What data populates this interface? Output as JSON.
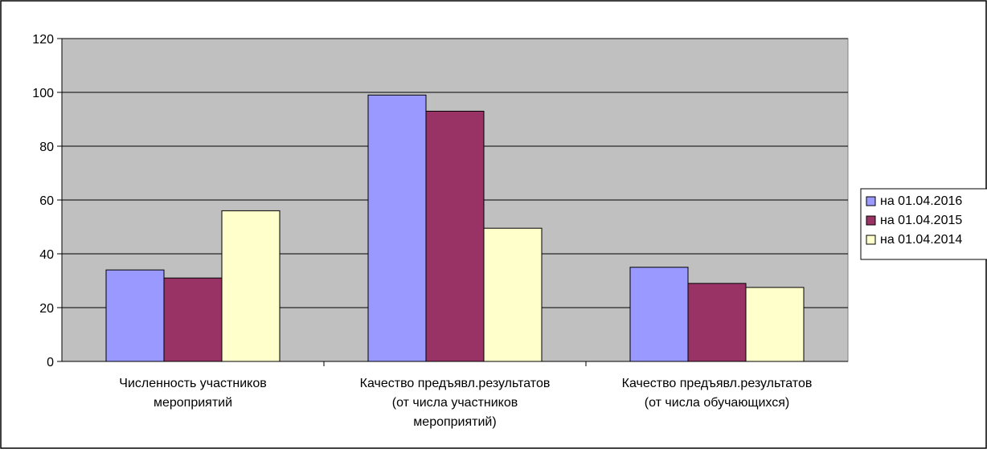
{
  "chart_data": {
    "type": "bar",
    "title": "",
    "xlabel": "",
    "ylabel": "",
    "ylim": [
      0,
      120
    ],
    "y_ticks": [
      "0",
      "20",
      "40",
      "60",
      "80",
      "100",
      "120"
    ],
    "grid": true,
    "legend_position": "right",
    "categories": [
      [
        "Численность участников",
        "мероприятий"
      ],
      [
        "Качество предъявл.результатов",
        "(от числа участников",
        "мероприятий)"
      ],
      [
        "Качество предъявл.результатов",
        "(от числа обучающихся)"
      ]
    ],
    "series": [
      {
        "name": "на 01.04.2016",
        "values": [
          34,
          99,
          35
        ]
      },
      {
        "name": "на 01.04.2015",
        "values": [
          31,
          93,
          29
        ]
      },
      {
        "name": "на 01.04.2014",
        "values": [
          56,
          49.5,
          27.5
        ]
      }
    ],
    "colors": {
      "plot_background": "#c0c0c0",
      "series": [
        "#9999ff",
        "#993366",
        "#ffffcc"
      ]
    }
  }
}
